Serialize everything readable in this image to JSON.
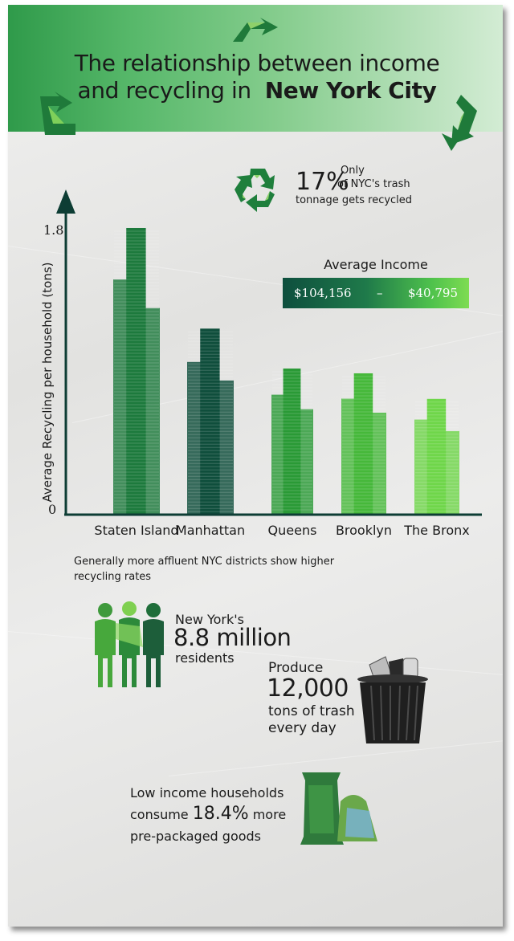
{
  "title": {
    "line1": "The relationship between income",
    "line2_prefix": "and recycling in",
    "line2_bold": "New York City"
  },
  "stat_recycled": {
    "value": "17%",
    "line1": "Only",
    "line2": "of NYC's trash",
    "line3": "tonnage gets recycled"
  },
  "income_legend": {
    "label": "Average Income",
    "high": "$104,156",
    "dash": "–",
    "low": "$40,795"
  },
  "chart_data": {
    "type": "bar",
    "categories": [
      "Staten Island",
      "Manhattan",
      "Queens",
      "Brooklyn",
      "The Bronx"
    ],
    "values": [
      1.79,
      1.16,
      0.91,
      0.88,
      0.72
    ],
    "ylabel": "Average Recycling per household (tons)",
    "ylim": [
      0,
      1.8
    ],
    "y_ticks": [
      "0",
      "1.8"
    ],
    "grid": false,
    "colors": [
      "#1d7a3d",
      "#0f4e3c",
      "#2a9a36",
      "#46b83a",
      "#6fd64a"
    ]
  },
  "chart_caption": {
    "line1": "Generally more affluent NYC districts show higher",
    "line2": "recycling rates"
  },
  "residents": {
    "line1": "New York's",
    "value": "8.8 million",
    "line3": "residents"
  },
  "trash": {
    "line1": "Produce",
    "value": "12,000",
    "line3": "tons of trash",
    "line4": "every day"
  },
  "packaged": {
    "line1": "Low income households",
    "line2_prefix": "consume",
    "value": "18.4%",
    "line2_suffix": "more",
    "line3": "pre-packaged goods"
  },
  "icons": [
    "recycle-arrow-icon",
    "recycle-symbol-icon",
    "people-icon",
    "trash-can-icon",
    "snack-bag-icon"
  ]
}
